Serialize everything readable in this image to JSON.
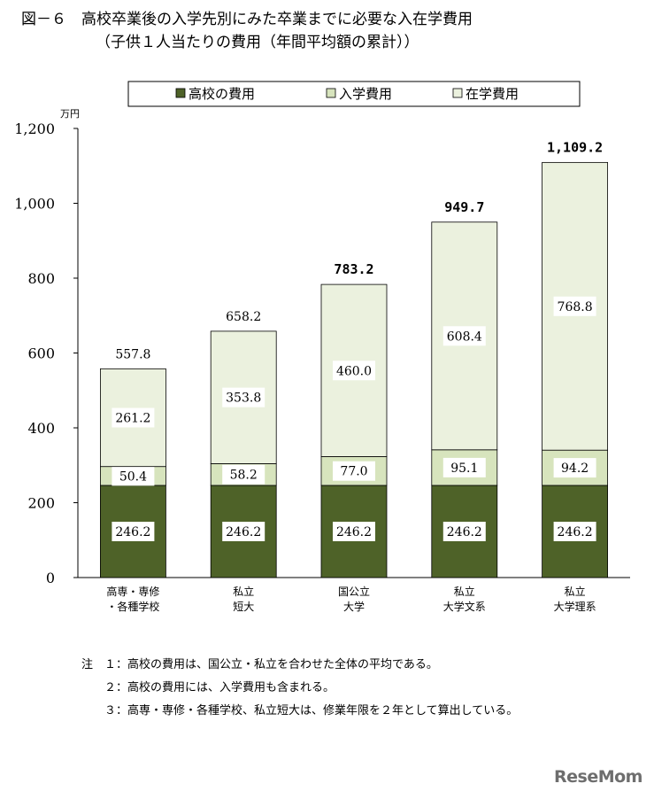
{
  "title_line1": "図－６　高校卒業後の入学先別にみた卒業までに必要な入在学費用",
  "title_line2": "（子供１人当たりの費用（年間平均額の累計））",
  "legend": [
    "高校の費用",
    "入学費用",
    "在学費用"
  ],
  "unit_label": "万円",
  "y_ticks": [
    "1,200",
    "1,000",
    "800",
    "600",
    "400",
    "200",
    "0"
  ],
  "colors": {
    "high_school": "#4e6228",
    "entrance": "#d7e4bd",
    "enrollment": "#ebf1de",
    "edge": "#000000"
  },
  "chart_data": {
    "type": "bar",
    "stacked": true,
    "categories": [
      [
        "高専・専修",
        "・各種学校"
      ],
      [
        "私立",
        "短大"
      ],
      [
        "国公立",
        "大学"
      ],
      [
        "私立",
        "大学文系"
      ],
      [
        "私立",
        "大学理系"
      ]
    ],
    "series": [
      {
        "name": "高校の費用",
        "values": [
          246.2,
          246.2,
          246.2,
          246.2,
          246.2
        ],
        "labels": [
          "246.2",
          "246.2",
          "246.2",
          "246.2",
          "246.2"
        ]
      },
      {
        "name": "入学費用",
        "values": [
          50.4,
          58.2,
          77.0,
          95.1,
          94.2
        ],
        "labels": [
          "50.4",
          "58.2",
          "77.0",
          "95.1",
          "94.2"
        ]
      },
      {
        "name": "在学費用",
        "values": [
          261.2,
          353.8,
          460.0,
          608.4,
          768.8
        ],
        "labels": [
          "261.2",
          "353.8",
          "460.0",
          "608.4",
          "768.8"
        ]
      }
    ],
    "totals": [
      557.8,
      658.2,
      783.2,
      949.7,
      1109.2
    ],
    "total_labels": [
      "557.8",
      "658.2",
      "783.2",
      "949.7",
      "1,109.2"
    ],
    "total_bold": [
      false,
      false,
      true,
      true,
      true
    ],
    "ylim": [
      0,
      1200
    ],
    "ylabel": "万円",
    "grid": false,
    "legend_position": "top"
  },
  "notes": [
    "注　１：高校の費用は、国公立・私立を合わせた全体の平均である。",
    "　　２：高校の費用には、入学費用も含まれる。",
    "　　３：高専・専修・各種学校、私立短大は、修業年限を２年として算出している。"
  ],
  "watermark": "ReseMom"
}
